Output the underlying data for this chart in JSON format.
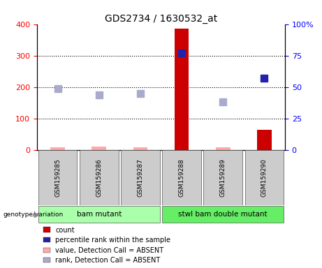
{
  "title": "GDS2734 / 1630532_at",
  "samples": [
    "GSM159285",
    "GSM159286",
    "GSM159287",
    "GSM159288",
    "GSM159289",
    "GSM159290"
  ],
  "x_positions": [
    1,
    2,
    3,
    4,
    5,
    6
  ],
  "count_values": [
    null,
    null,
    null,
    385,
    null,
    65
  ],
  "count_absent_values": [
    10,
    12,
    8,
    null,
    10,
    null
  ],
  "percentile_values": [
    null,
    null,
    null,
    77,
    null,
    57
  ],
  "percentile_absent_values": [
    49,
    44,
    45,
    null,
    38,
    null
  ],
  "ylim_left": [
    0,
    400
  ],
  "ylim_right": [
    0,
    100
  ],
  "yticks_left": [
    0,
    100,
    200,
    300,
    400
  ],
  "yticks_right": [
    0,
    25,
    50,
    75,
    100
  ],
  "ytick_labels_right": [
    "0",
    "25",
    "50",
    "75",
    "100%"
  ],
  "ytick_labels_left": [
    "0",
    "100",
    "200",
    "300",
    "400"
  ],
  "color_count": "#cc0000",
  "color_count_absent": "#ffaaaa",
  "color_percentile": "#2222aa",
  "color_percentile_absent": "#aaaacc",
  "group1_label": "bam mutant",
  "group2_label": "stwl bam double mutant",
  "group1_color": "#aaffaa",
  "group2_color": "#66ee66",
  "genotype_label": "genotype/variation",
  "legend_items": [
    {
      "label": "count",
      "color": "#cc0000"
    },
    {
      "label": "percentile rank within the sample",
      "color": "#2222aa"
    },
    {
      "label": "value, Detection Call = ABSENT",
      "color": "#ffaaaa"
    },
    {
      "label": "rank, Detection Call = ABSENT",
      "color": "#aaaacc"
    }
  ],
  "marker_size": 7,
  "background_color": "#ffffff"
}
